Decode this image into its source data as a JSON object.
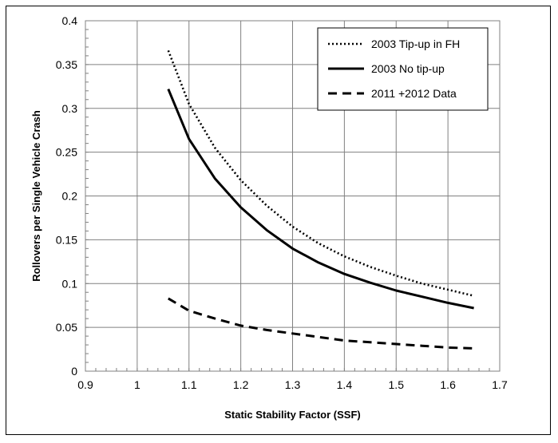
{
  "chart_data": {
    "type": "line",
    "xlabel": "Static Stability Factor (SSF)",
    "ylabel": "Rollovers per Single Vehicle Crash",
    "xlim": [
      0.9,
      1.7
    ],
    "ylim": [
      0,
      0.4
    ],
    "x_ticks": [
      "0.9",
      "1",
      "1.1",
      "1.2",
      "1.3",
      "1.4",
      "1.5",
      "1.6",
      "1.7"
    ],
    "y_ticks": [
      "0",
      "0.05",
      "0.1",
      "0.15",
      "0.2",
      "0.25",
      "0.3",
      "0.35",
      "0.4"
    ],
    "grid": true,
    "legend_position": "top-right",
    "series": [
      {
        "name": "2003 Tip-up in FH",
        "style": "dotted",
        "color": "#000000",
        "x": [
          1.06,
          1.1,
          1.15,
          1.2,
          1.25,
          1.3,
          1.35,
          1.4,
          1.45,
          1.5,
          1.55,
          1.6,
          1.65
        ],
        "y": [
          0.366,
          0.305,
          0.255,
          0.218,
          0.189,
          0.165,
          0.146,
          0.131,
          0.119,
          0.109,
          0.1,
          0.093,
          0.086
        ]
      },
      {
        "name": "2003 No tip-up",
        "style": "solid",
        "color": "#000000",
        "x": [
          1.06,
          1.1,
          1.15,
          1.2,
          1.25,
          1.3,
          1.35,
          1.4,
          1.45,
          1.5,
          1.55,
          1.6,
          1.65
        ],
        "y": [
          0.322,
          0.265,
          0.22,
          0.187,
          0.161,
          0.14,
          0.124,
          0.111,
          0.101,
          0.092,
          0.085,
          0.078,
          0.072
        ]
      },
      {
        "name": "2011 +2012 Data",
        "style": "dashed",
        "color": "#000000",
        "x": [
          1.06,
          1.1,
          1.15,
          1.2,
          1.25,
          1.3,
          1.35,
          1.4,
          1.45,
          1.5,
          1.55,
          1.6,
          1.65
        ],
        "y": [
          0.083,
          0.069,
          0.06,
          0.052,
          0.047,
          0.043,
          0.039,
          0.035,
          0.033,
          0.031,
          0.029,
          0.027,
          0.026
        ]
      }
    ]
  }
}
